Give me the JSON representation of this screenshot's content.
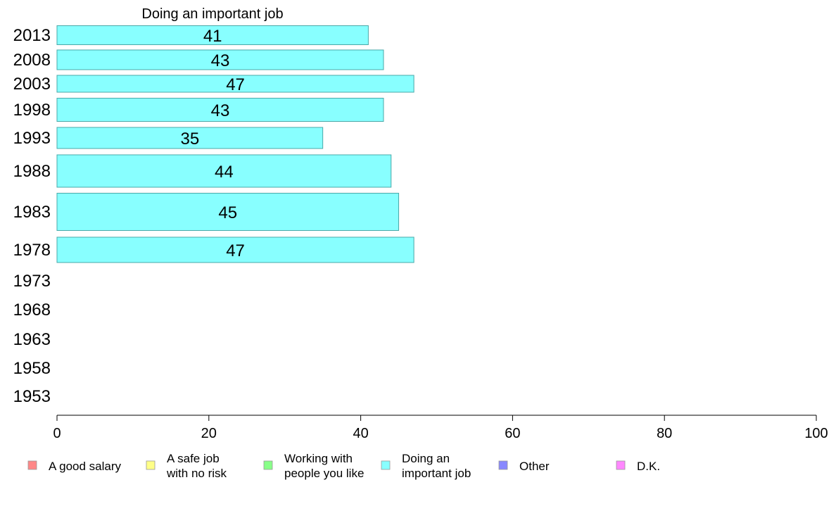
{
  "chart_data": {
    "type": "bar",
    "orientation": "horizontal",
    "title": "Doing an important job",
    "categories": [
      "2013",
      "2008",
      "2003",
      "1998",
      "1993",
      "1988",
      "1983",
      "1978",
      "1973",
      "1968",
      "1963",
      "1958",
      "1953"
    ],
    "values": [
      41,
      43,
      47,
      43,
      35,
      44,
      45,
      47,
      null,
      null,
      null,
      null,
      null
    ],
    "xlim": [
      0,
      100
    ],
    "xticks": [
      0,
      20,
      40,
      60,
      80,
      100
    ],
    "grid": false,
    "bar_color": "#88ffff",
    "legend_position": "bottom",
    "legend": [
      {
        "lines": [
          "A good salary"
        ],
        "color": "#ff8888"
      },
      {
        "lines": [
          "A safe job",
          "with no risk"
        ],
        "color": "#ffff88"
      },
      {
        "lines": [
          "Working with",
          "people you like"
        ],
        "color": "#88ff88"
      },
      {
        "lines": [
          "Doing an",
          "important job"
        ],
        "color": "#88ffff"
      },
      {
        "lines": [
          "Other"
        ],
        "color": "#8888ff"
      },
      {
        "lines": [
          "D.K."
        ],
        "color": "#ff88ff"
      }
    ]
  }
}
